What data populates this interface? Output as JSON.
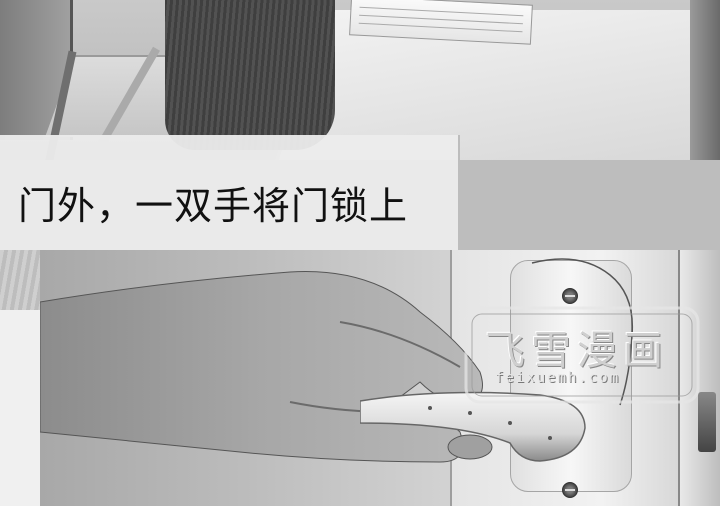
{
  "caption": {
    "text": "门外，一双手将门锁上"
  },
  "watermark": {
    "title": "飞雪漫画",
    "url": "feixuemh.com"
  },
  "colors": {
    "caption_bg": "#ececec",
    "caption_text": "#111111"
  }
}
